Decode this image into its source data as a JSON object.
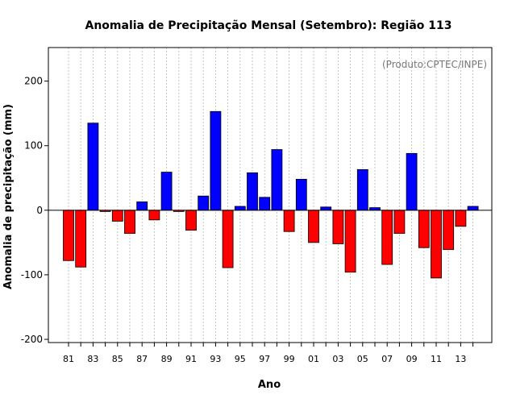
{
  "chart_data": {
    "type": "bar",
    "title": "Anomalia de Precipitação Mensal (Setembro): Região 113",
    "xlabel": "Ano",
    "ylabel": "Anomalia de precipitação (mm)",
    "credit": "(Produto:CPTEC/INPE)",
    "ylim": [
      -205,
      252
    ],
    "y_ticks": [
      -200,
      -100,
      0,
      100,
      200
    ],
    "grid": "vertical dotted",
    "positive_color": "#0000ff",
    "negative_color": "#ff0000",
    "x_tick_labels": [
      "81",
      "83",
      "85",
      "87",
      "89",
      "91",
      "93",
      "95",
      "97",
      "99",
      "01",
      "03",
      "05",
      "07",
      "09",
      "11",
      "13"
    ],
    "categories": [
      "1981",
      "1982",
      "1983",
      "1984",
      "1985",
      "1986",
      "1987",
      "1988",
      "1989",
      "1990",
      "1991",
      "1992",
      "1993",
      "1994",
      "1995",
      "1996",
      "1997",
      "1998",
      "1999",
      "2000",
      "2001",
      "2002",
      "2003",
      "2004",
      "2005",
      "2006",
      "2007",
      "2008",
      "2009",
      "2010",
      "2011",
      "2012",
      "2013",
      "2014"
    ],
    "values": [
      -78,
      -88,
      135,
      -2,
      -17,
      -36,
      13,
      -15,
      59,
      -2,
      -31,
      22,
      153,
      -89,
      6,
      58,
      20,
      94,
      -33,
      48,
      -50,
      5,
      -52,
      -96,
      63,
      4,
      -84,
      -36,
      88,
      -58,
      -105,
      -61,
      -25,
      6
    ]
  }
}
